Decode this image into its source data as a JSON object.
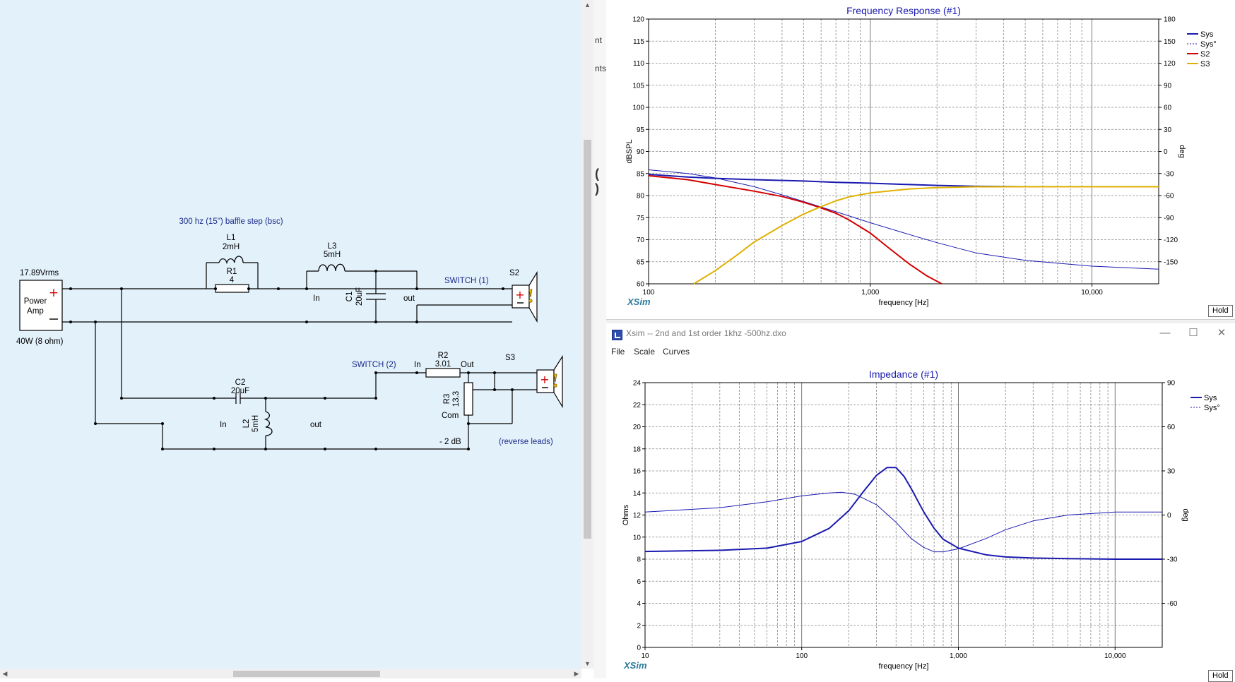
{
  "schematic": {
    "amp_voltage": "17.89Vrms",
    "amp_name_1": "Power",
    "amp_name_2": "Amp",
    "amp_power": "40W (8 ohm)",
    "bsc_note": "300 hz (15\") baffle step (bsc)",
    "l1_name": "L1",
    "l1_value": "2mH",
    "r1_name": "R1",
    "r1_value": "4",
    "l3_name": "L3",
    "l3_value": "5mH",
    "c1_name": "C1",
    "c1_value": "20uF",
    "in_label": "In",
    "out_label": "out",
    "switch1": "SWITCH (1)",
    "s2": "S2",
    "switch2": "SWITCH (2)",
    "r2_name": "R2",
    "r2_value": "3.01",
    "pad_in": "In",
    "pad_out": "Out",
    "pad_com": "Com",
    "r3_name": "R3",
    "r3_value": "13.3",
    "s3": "S3",
    "c2_name": "C2",
    "c2_value": "20uF",
    "l2_name": "L2",
    "l2_value": "5mH",
    "in2_label": "In",
    "out2_label": "out",
    "atten": "- 2 dB",
    "reverse": "(reverse leads)"
  },
  "side_fragments": [
    "nt",
    "nts",
    "( )"
  ],
  "windows": {
    "impedance_title": "Xsim -- 2nd and 1st order 1khz -500hz.dxo",
    "menu": [
      "File",
      "Scale",
      "Curves"
    ],
    "hold": "Hold"
  },
  "colors": {
    "sys": "#1a1ab0",
    "s2": "#d40000",
    "s3": "#e0b000",
    "title": "#1a1ab0",
    "brand": "#2a7a9a"
  },
  "chart_data": [
    {
      "type": "line",
      "title": "Frequency Response (#1)",
      "xlabel": "frequency [Hz]",
      "ylabel": "dBSPL",
      "y2label": "deg",
      "xscale": "log",
      "xlim": [
        100,
        20000
      ],
      "ylim": [
        60,
        120
      ],
      "y2lim": [
        -180,
        180
      ],
      "xticks": [
        "100",
        "1,000",
        "10,000"
      ],
      "yticks": [
        60,
        65,
        70,
        75,
        80,
        85,
        90,
        95,
        100,
        105,
        110,
        115,
        120
      ],
      "y2ticks": [
        -150,
        -120,
        -90,
        -60,
        -30,
        0,
        30,
        60,
        90,
        120,
        150,
        180
      ],
      "legend": "top-right",
      "grid": true,
      "brand": "XSim",
      "series": [
        {
          "name": "Sys",
          "color": "#1a1ab0",
          "axis": "left",
          "style": "solid",
          "x": [
            100,
            150,
            200,
            300,
            500,
            700,
            1000,
            1500,
            2000,
            3000,
            5000
          ],
          "y": [
            84.8,
            84.2,
            83.9,
            83.6,
            83.3,
            83.0,
            82.8,
            82.5,
            82.3,
            82.1,
            82.0
          ]
        },
        {
          "name": "Sys°",
          "color": "#1a1ab0",
          "axis": "right",
          "style": "dashed",
          "x": [
            100,
            150,
            200,
            300,
            400,
            500,
            700,
            1000,
            1500,
            2000,
            3000,
            5000,
            10000,
            20000
          ],
          "y": [
            -25,
            -30,
            -36,
            -48,
            -59,
            -68,
            -82,
            -97,
            -113,
            -124,
            -138,
            -148,
            -156,
            -160
          ]
        },
        {
          "name": "S2",
          "color": "#d40000",
          "axis": "left",
          "style": "solid",
          "x": [
            100,
            150,
            200,
            300,
            400,
            500,
            600,
            700,
            800,
            1000,
            1200,
            1500,
            1800,
            2100
          ],
          "y": [
            84.5,
            83.6,
            82.5,
            81.0,
            79.8,
            78.5,
            77.2,
            76.0,
            74.5,
            71.5,
            68.3,
            64.5,
            61.8,
            60.0
          ]
        },
        {
          "name": "S3",
          "color": "#e0b000",
          "axis": "left",
          "style": "solid",
          "x": [
            160,
            200,
            250,
            300,
            400,
            500,
            600,
            700,
            800,
            1000,
            1500,
            2000,
            3000,
            5000,
            10000,
            20000
          ],
          "y": [
            60,
            63,
            66.5,
            69.5,
            73.2,
            75.8,
            77.5,
            78.8,
            79.7,
            80.6,
            81.5,
            81.8,
            82.0,
            82.0,
            82.0,
            82.0
          ]
        }
      ]
    },
    {
      "type": "line",
      "title": "Impedance (#1)",
      "xlabel": "frequency [Hz]",
      "ylabel": "Ohms",
      "y2label": "deg",
      "xscale": "log",
      "xlim": [
        10,
        20000
      ],
      "ylim": [
        0,
        24
      ],
      "y2lim": [
        -90,
        90
      ],
      "xticks": [
        "10",
        "100",
        "1,000",
        "10,000"
      ],
      "yticks": [
        0,
        2,
        4,
        6,
        8,
        10,
        12,
        14,
        16,
        18,
        20,
        22,
        24
      ],
      "y2ticks": [
        -60,
        -30,
        0,
        30,
        60,
        90
      ],
      "legend": "top-right",
      "grid": true,
      "brand": "XSim",
      "series": [
        {
          "name": "Sys",
          "color": "#1a1ab0",
          "axis": "left",
          "style": "solid",
          "x": [
            10,
            30,
            60,
            100,
            150,
            200,
            250,
            300,
            350,
            400,
            450,
            500,
            600,
            700,
            800,
            1000,
            1500,
            2000,
            3000,
            5000,
            10000,
            20000
          ],
          "y": [
            8.7,
            8.8,
            9.0,
            9.6,
            10.8,
            12.4,
            14.2,
            15.6,
            16.3,
            16.3,
            15.5,
            14.4,
            12.3,
            10.8,
            9.8,
            9.0,
            8.4,
            8.2,
            8.1,
            8.05,
            8.0,
            8.0
          ]
        },
        {
          "name": "Sys°",
          "color": "#1a1ab0",
          "axis": "right",
          "style": "thin",
          "x": [
            10,
            30,
            60,
            100,
            150,
            180,
            220,
            300,
            400,
            500,
            600,
            700,
            800,
            1000,
            1500,
            2000,
            3000,
            5000,
            10000,
            20000
          ],
          "y": [
            2,
            5,
            9,
            13,
            15,
            15.5,
            14,
            7,
            -5,
            -16,
            -22,
            -25,
            -25,
            -23,
            -16,
            -10,
            -4,
            0,
            2,
            2
          ]
        }
      ]
    }
  ]
}
